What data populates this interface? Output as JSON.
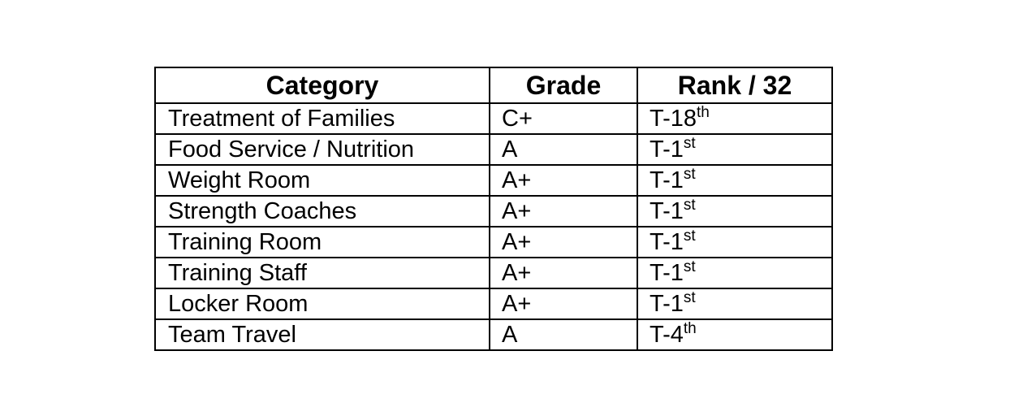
{
  "table": {
    "headers": {
      "category": "Category",
      "grade": "Grade",
      "rank": "Rank / 32"
    },
    "rows": [
      {
        "category": "Treatment of Families",
        "grade": "C+",
        "rank": "T-18",
        "rank_suffix": "th"
      },
      {
        "category": "Food Service / Nutrition",
        "grade": "A",
        "rank": "T-1",
        "rank_suffix": "st"
      },
      {
        "category": "Weight Room",
        "grade": "A+",
        "rank": "T-1",
        "rank_suffix": "st"
      },
      {
        "category": "Strength Coaches",
        "grade": "A+",
        "rank": "T-1",
        "rank_suffix": "st"
      },
      {
        "category": "Training Room",
        "grade": "A+",
        "rank": "T-1",
        "rank_suffix": "st"
      },
      {
        "category": "Training Staff",
        "grade": "A+",
        "rank": "T-1",
        "rank_suffix": "st"
      },
      {
        "category": "Locker Room",
        "grade": "A+",
        "rank": "T-1",
        "rank_suffix": "st"
      },
      {
        "category": "Team Travel",
        "grade": "A",
        "rank": "T-4",
        "rank_suffix": "th"
      }
    ]
  }
}
